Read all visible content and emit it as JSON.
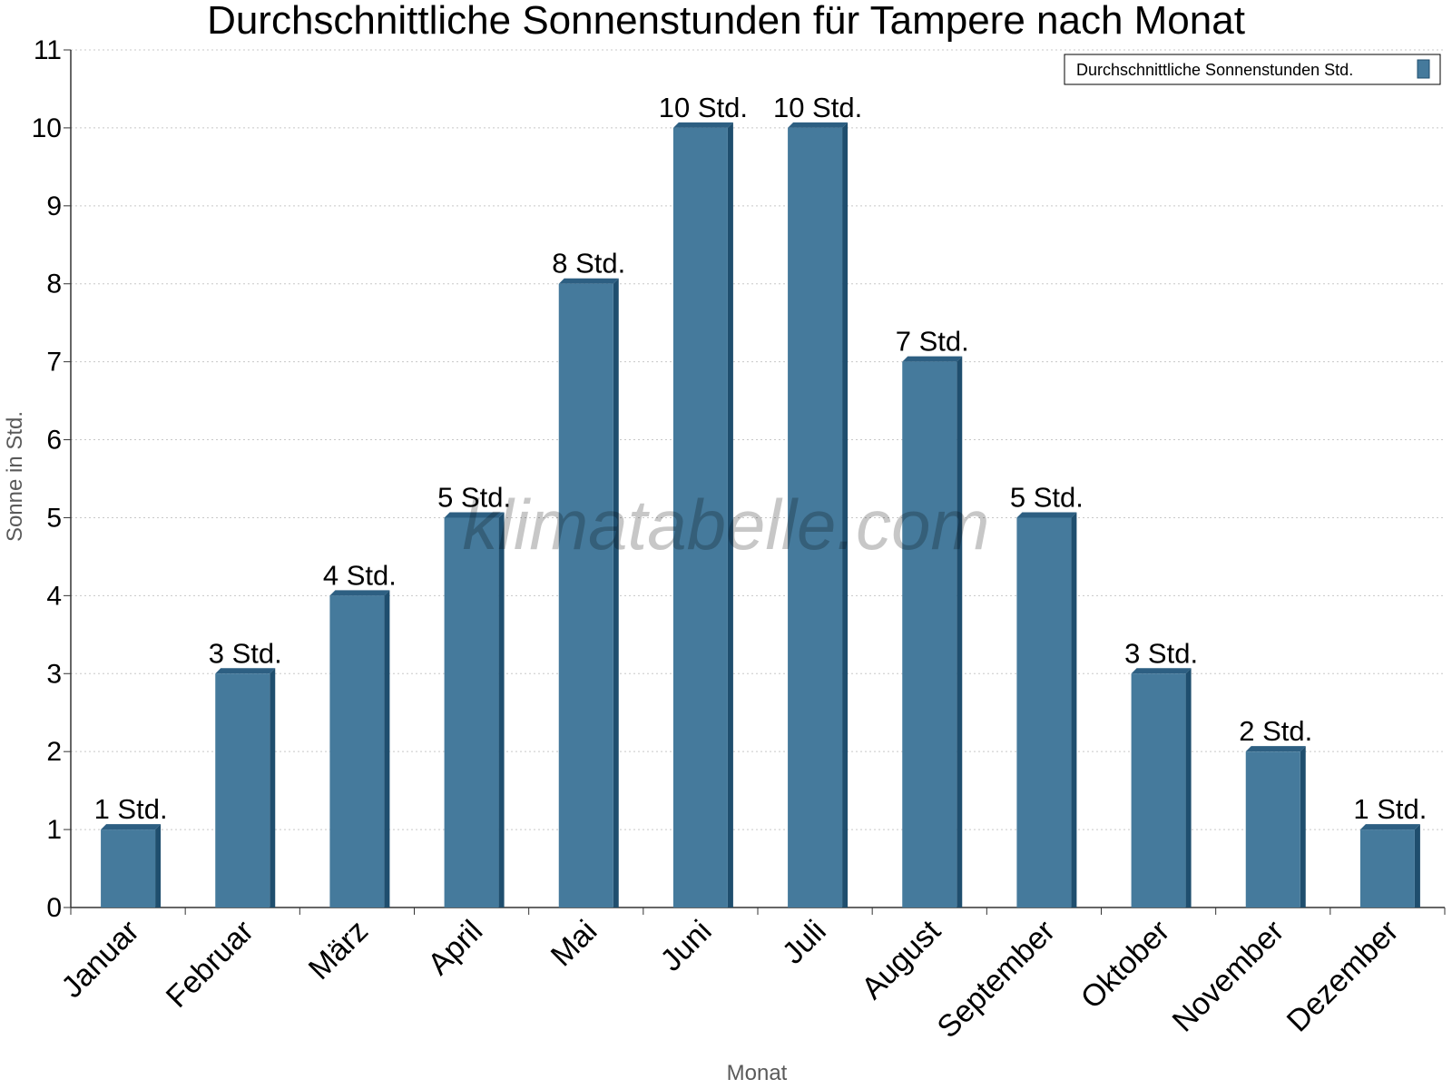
{
  "chart_data": {
    "type": "bar",
    "title": "Durchschnittliche Sonnenstunden für Tampere nach Monat",
    "xlabel": "Monat",
    "ylabel": "Sonne in Std.",
    "categories": [
      "Januar",
      "Februar",
      "März",
      "April",
      "Mai",
      "Juni",
      "Juli",
      "August",
      "September",
      "Oktober",
      "November",
      "Dezember"
    ],
    "series": [
      {
        "name": "Durchschnittliche Sonnenstunden Std.",
        "values": [
          1,
          3,
          4,
          5,
          8,
          10,
          10,
          7,
          5,
          3,
          2,
          1
        ],
        "data_labels": [
          "1 Std.",
          "3 Std.",
          "4 Std.",
          "5 Std.",
          "8 Std.",
          "10 Std.",
          "10 Std.",
          "7 Std.",
          "5 Std.",
          "3 Std.",
          "2 Std.",
          "1 Std."
        ]
      }
    ],
    "ylim": [
      0,
      11
    ],
    "yticks": [
      "0",
      "1",
      "2",
      "3",
      "4",
      "5",
      "6",
      "7",
      "8",
      "9",
      "10",
      "11"
    ],
    "grid": true,
    "legend_position": "top-right",
    "colors": {
      "bar": "#457a9c",
      "bar_side": "#1f4e6e",
      "bar_top": "#2d5f82",
      "grid": "#c8c8c8",
      "axis": "#333333",
      "axis_title": "#5a5a5a",
      "text": "#000000"
    }
  },
  "watermark": "klimatabelle.com"
}
